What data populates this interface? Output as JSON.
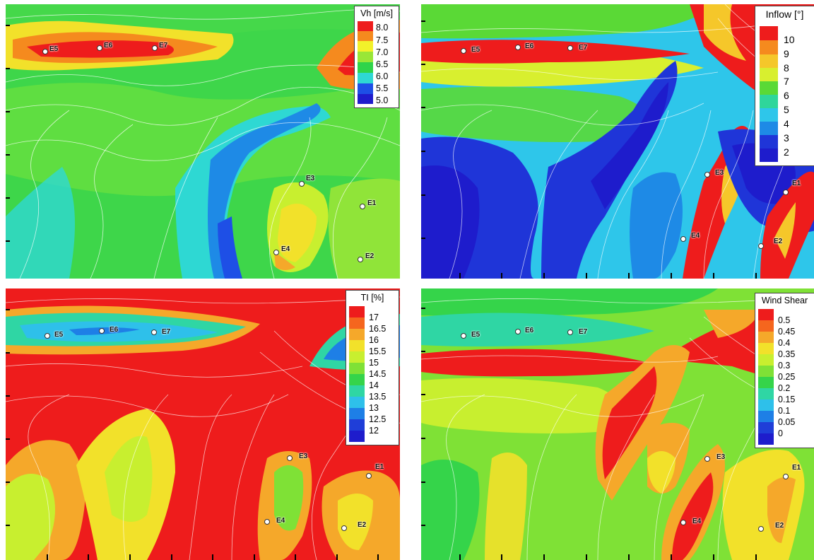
{
  "panels": [
    {
      "id": "vh",
      "legend": {
        "title": "Vh [m/s]",
        "labels": [
          "8.0",
          "7.5",
          "7.0",
          "6.5",
          "6.0",
          "5.5",
          "5.0"
        ],
        "colors": [
          "#ee1c1c",
          "#f58a1e",
          "#f2f12a",
          "#99e637",
          "#2fd44a",
          "#2ed8d3",
          "#1e4fe6",
          "#1f1ccc"
        ]
      },
      "sites": [
        "E5",
        "E6",
        "E7",
        "E3",
        "E1",
        "E4",
        "E2"
      ]
    },
    {
      "id": "inflow",
      "legend": {
        "title": "Inflow [°]",
        "labels": [
          "10",
          "9",
          "8",
          "7",
          "6",
          "5",
          "4",
          "3",
          "2"
        ],
        "colors": [
          "#ee1c1c",
          "#f58a1e",
          "#f5c72a",
          "#d8ef2f",
          "#5ad936",
          "#2fd69b",
          "#2ec6ea",
          "#1e8ae6",
          "#1f35d8",
          "#1e1ccc"
        ]
      },
      "sites": [
        "E5",
        "E6",
        "E7",
        "E3",
        "E1",
        "E4",
        "E2"
      ]
    },
    {
      "id": "ti",
      "legend": {
        "title": "TI [%]",
        "labels": [
          "17",
          "16.5",
          "16",
          "15.5",
          "15",
          "14.5",
          "14",
          "13.5",
          "13",
          "12.5",
          "12"
        ],
        "colors": [
          "#ee1c1c",
          "#f5661e",
          "#f5a82a",
          "#f2e12a",
          "#c8ef2f",
          "#7fe136",
          "#35d44a",
          "#2fd6a4",
          "#2ec0ea",
          "#1e7fe6",
          "#1f3ed8",
          "#1e1ccc"
        ]
      },
      "sites": [
        "E5",
        "E6",
        "E7",
        "E3",
        "E1",
        "E4",
        "E2"
      ]
    },
    {
      "id": "shear",
      "legend": {
        "title": "Wind Shear",
        "labels": [
          "0.5",
          "0.45",
          "0.4",
          "0.35",
          "0.3",
          "0.25",
          "0.2",
          "0.15",
          "0.1",
          "0.05",
          "0"
        ],
        "colors": [
          "#ee1c1c",
          "#f5661e",
          "#f5a82a",
          "#f2e12a",
          "#c8ef2f",
          "#7fe136",
          "#35d44a",
          "#2fd6a4",
          "#2ec0ea",
          "#1e7fe6",
          "#1f3ed8",
          "#1e1ccc"
        ]
      },
      "sites": [
        "E5",
        "E6",
        "E7",
        "E3",
        "E1",
        "E4",
        "E2"
      ]
    }
  ]
}
